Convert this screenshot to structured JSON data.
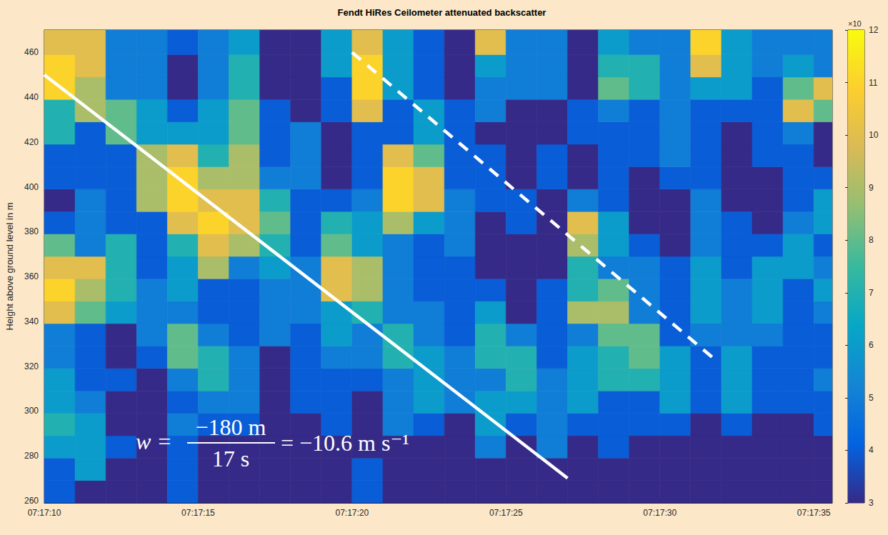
{
  "chart_data": {
    "type": "heatmap",
    "title": "Fendt HiRes Ceilometer attenuated backscatter",
    "ylabel": "Height above ground level in m",
    "xlim": [
      10,
      35.6
    ],
    "xticks": [
      {
        "value": 10,
        "label": "07:17:10"
      },
      {
        "value": 15,
        "label": "07:17:15"
      },
      {
        "value": 20,
        "label": "07:17:20"
      },
      {
        "value": 25,
        "label": "07:17:25"
      },
      {
        "value": 30,
        "label": "07:17:30"
      },
      {
        "value": 35,
        "label": "07:17:35"
      }
    ],
    "ylim": [
      259,
      470
    ],
    "yticks": [
      260,
      280,
      300,
      320,
      340,
      360,
      380,
      400,
      420,
      440,
      460
    ],
    "grid": false,
    "x_edges": [
      10,
      11,
      12,
      13,
      14,
      15,
      16,
      17,
      18,
      19,
      20,
      21,
      22,
      23,
      24,
      25,
      26,
      27,
      28,
      29,
      30,
      31,
      32,
      33,
      34,
      35,
      35.6
    ],
    "y_edges": [
      259,
      269,
      279,
      289,
      299,
      309,
      319,
      329,
      339,
      349,
      359,
      369,
      379,
      389,
      399,
      409,
      419,
      429,
      439,
      449,
      459,
      470
    ],
    "cells": [
      [
        4,
        4,
        6,
        7,
        6,
        6,
        5,
        5,
        10,
        11,
        10,
        8,
        4,
        3,
        4,
        4,
        7,
        7,
        11,
        11,
        10
      ],
      [
        3,
        6,
        6,
        6,
        5,
        4,
        4,
        4,
        8,
        9,
        10,
        5,
        5,
        5,
        4,
        4,
        4,
        9,
        9,
        10,
        10
      ],
      [
        3,
        3,
        4,
        3,
        3,
        4,
        3,
        3,
        6,
        7,
        7,
        7,
        4,
        4,
        4,
        4,
        8,
        8,
        5,
        5,
        5
      ],
      [
        3,
        3,
        3,
        3,
        3,
        3,
        4,
        5,
        5,
        5,
        4,
        4,
        4,
        9,
        9,
        9,
        6,
        6,
        5,
        5,
        5
      ],
      [
        4,
        4,
        4,
        5,
        4,
        5,
        8,
        8,
        5,
        6,
        6,
        7,
        10,
        11,
        11,
        10,
        6,
        4,
        3,
        3,
        4
      ],
      [
        3,
        3,
        3,
        4,
        5,
        7,
        7,
        5,
        4,
        4,
        9,
        10,
        11,
        10,
        9,
        7,
        6,
        6,
        5,
        5,
        5
      ],
      [
        3,
        3,
        3,
        4,
        5,
        5,
        5,
        4,
        4,
        4,
        5,
        9,
        10,
        10,
        9,
        9,
        8,
        8,
        7,
        7,
        6
      ],
      [
        3,
        3,
        3,
        3,
        3,
        3,
        3,
        5,
        5,
        5,
        6,
        7,
        8,
        7,
        5,
        4,
        4,
        4,
        3,
        3,
        3
      ],
      [
        3,
        3,
        3,
        3,
        4,
        4,
        4,
        4,
        5,
        5,
        5,
        4,
        4,
        4,
        5,
        5,
        5,
        3,
        3,
        3,
        3
      ],
      [
        3,
        3,
        3,
        4,
        4,
        4,
        5,
        6,
        6,
        10,
        10,
        8,
        7,
        4,
        3,
        3,
        3,
        4,
        4,
        6,
        6
      ],
      [
        4,
        4,
        3,
        3,
        3,
        4,
        5,
        5,
        7,
        9,
        9,
        6,
        6,
        5,
        4,
        4,
        4,
        10,
        11,
        11,
        10
      ],
      [
        3,
        3,
        3,
        5,
        5,
        5,
        7,
        7,
        5,
        5,
        5,
        5,
        9,
        11,
        11,
        10,
        4,
        4,
        6,
        6,
        6
      ],
      [
        3,
        3,
        3,
        4,
        6,
        6,
        6,
        5,
        5,
        4,
        4,
        4,
        6,
        10,
        10,
        8,
        6,
        6,
        4,
        4,
        4
      ],
      [
        3,
        3,
        3,
        3,
        5,
        5,
        5,
        4,
        4,
        4,
        4,
        5,
        5,
        5,
        4,
        4,
        4,
        4,
        3,
        3,
        3
      ],
      [
        3,
        3,
        5,
        6,
        6,
        5,
        7,
        7,
        6,
        4,
        3,
        3,
        3,
        4,
        4,
        4,
        3,
        5,
        5,
        6,
        10
      ],
      [
        3,
        3,
        3,
        4,
        6,
        7,
        7,
        5,
        3,
        3,
        3,
        3,
        4,
        4,
        3,
        3,
        3,
        3,
        5,
        5,
        5
      ],
      [
        3,
        3,
        5,
        5,
        5,
        5,
        4,
        4,
        4,
        4,
        3,
        3,
        3,
        3,
        4,
        4,
        3,
        3,
        5,
        5,
        5
      ],
      [
        3,
        3,
        3,
        4,
        6,
        6,
        6,
        5,
        9,
        7,
        7,
        9,
        10,
        5,
        3,
        3,
        4,
        4,
        3,
        3,
        3
      ],
      [
        3,
        3,
        4,
        4,
        4,
        7,
        7,
        8,
        9,
        8,
        5,
        6,
        6,
        4,
        4,
        4,
        4,
        5,
        8,
        7,
        6
      ],
      [
        3,
        3,
        3,
        4,
        4,
        7,
        8,
        8,
        5,
        5,
        5,
        4,
        3,
        3,
        3,
        4,
        4,
        4,
        7,
        7,
        5
      ],
      [
        3,
        3,
        3,
        4,
        6,
        6,
        6,
        4,
        4,
        4,
        4,
        3,
        3,
        3,
        4,
        5,
        5,
        5,
        5,
        5,
        5
      ],
      [
        3,
        3,
        3,
        3,
        4,
        4,
        4,
        5,
        6,
        6,
        6,
        5,
        5,
        5,
        4,
        4,
        4,
        4,
        6,
        10,
        11
      ],
      [
        3,
        3,
        3,
        4,
        6,
        6,
        6,
        5,
        5,
        5,
        4,
        4,
        4,
        3,
        3,
        3,
        3,
        4,
        6,
        6,
        6
      ],
      [
        3,
        3,
        3,
        3,
        4,
        4,
        4,
        5,
        6,
        6,
        6,
        4,
        3,
        3,
        3,
        4,
        4,
        4,
        4,
        5,
        5
      ],
      [
        3,
        3,
        3,
        3,
        4,
        4,
        4,
        4,
        4,
        4,
        6,
        6,
        5,
        4,
        4,
        4,
        5,
        10,
        8,
        6,
        5
      ],
      [
        3,
        3,
        3,
        4,
        4,
        5,
        4,
        4,
        5,
        6,
        5,
        4,
        6,
        6,
        4,
        3,
        3,
        8,
        10,
        5,
        5
      ]
    ],
    "colorbar": {
      "label": "×10",
      "lim": [
        3,
        12
      ],
      "ticks": [
        3,
        4,
        5,
        6,
        7,
        8,
        9,
        10,
        11,
        12
      ]
    },
    "lines": [
      {
        "x": [
          10,
          27
        ],
        "y": [
          450,
          270
        ],
        "color": "#ffffff",
        "line_style": "solid"
      },
      {
        "x": [
          20,
          31.7
        ],
        "y": [
          460,
          324
        ],
        "color": "#ffffff",
        "line_style": "dashed"
      }
    ],
    "equation": {
      "lhs": "w =",
      "numerator": "−180 m",
      "denominator": "17 s",
      "rhs": "= −10.6 m s⁻¹"
    }
  }
}
